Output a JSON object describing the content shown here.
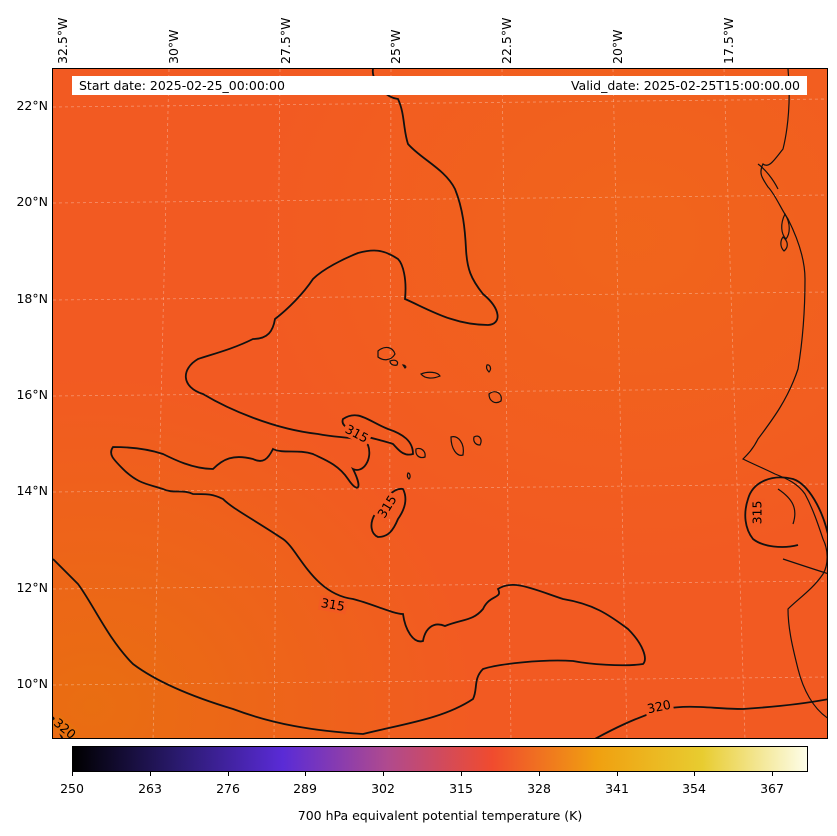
{
  "header": {
    "start_date": "Start date: 2025-02-25_00:00:00",
    "valid_date": "Valid_date: 2025-02-25T15:00:00.00"
  },
  "lon_labels": [
    "32.5°W",
    "30°W",
    "27.5°W",
    "25°W",
    "22.5°W",
    "20°W",
    "17.5°W"
  ],
  "lat_labels": [
    "22°N",
    "20°N",
    "18°N",
    "16°N",
    "14°N",
    "12°N",
    "10°N"
  ],
  "contour_labels": [
    "315",
    "315",
    "315",
    "315",
    "320",
    "320"
  ],
  "colorbar": {
    "title": "700 hPa equivalent potential temperature (K)",
    "tick_labels": [
      "250",
      "263",
      "276",
      "289",
      "302",
      "315",
      "328",
      "341",
      "354",
      "367"
    ],
    "range": [
      250,
      373
    ],
    "colors": [
      "#000000",
      "#2a1a6e",
      "#5a2bd6",
      "#b04a8e",
      "#f04b2e",
      "#f0a010",
      "#e8cc30",
      "#fdfde8"
    ]
  },
  "field_colors": {
    "dominant": "#f25a22",
    "warm_edge": "#e8700f"
  },
  "contour_values": [
    315,
    320
  ]
}
